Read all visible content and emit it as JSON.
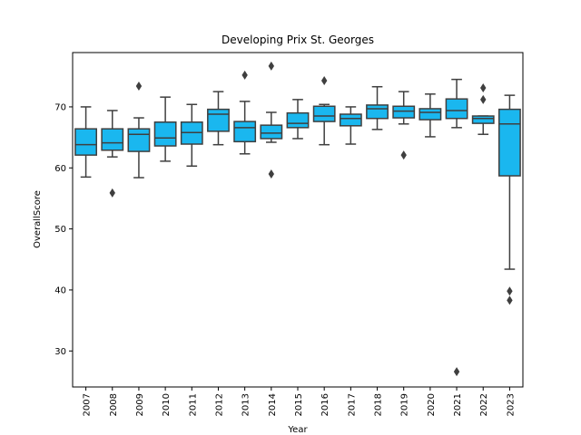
{
  "chart_data": {
    "type": "box",
    "title": "Developing Prix St. Georges",
    "x_label": "Year",
    "y_label": "OverallScore",
    "categories": [
      "2007",
      "2008",
      "2009",
      "2010",
      "2011",
      "2012",
      "2013",
      "2014",
      "2015",
      "2016",
      "2017",
      "2018",
      "2019",
      "2020",
      "2021",
      "2022",
      "2023"
    ],
    "color": "#1ab7ef",
    "boxes": [
      {
        "low": 58.5,
        "q1": 62.1,
        "median": 63.8,
        "q3": 66.4,
        "high": 70.0,
        "outliers": []
      },
      {
        "low": 61.8,
        "q1": 62.9,
        "median": 64.1,
        "q3": 66.4,
        "high": 69.4,
        "outliers": [
          55.9
        ]
      },
      {
        "low": 58.4,
        "q1": 62.7,
        "median": 65.5,
        "q3": 66.4,
        "high": 68.2,
        "outliers": [
          73.4
        ]
      },
      {
        "low": 61.1,
        "q1": 63.6,
        "median": 64.9,
        "q3": 67.5,
        "high": 71.6,
        "outliers": []
      },
      {
        "low": 60.3,
        "q1": 63.9,
        "median": 65.8,
        "q3": 67.5,
        "high": 70.4,
        "outliers": []
      },
      {
        "low": 63.8,
        "q1": 66.0,
        "median": 68.8,
        "q3": 69.6,
        "high": 72.5,
        "outliers": []
      },
      {
        "low": 62.3,
        "q1": 64.3,
        "median": 66.6,
        "q3": 67.6,
        "high": 70.9,
        "outliers": [
          75.2
        ]
      },
      {
        "low": 64.2,
        "q1": 64.8,
        "median": 65.7,
        "q3": 67.0,
        "high": 69.1,
        "outliers": [
          76.7,
          59.0
        ]
      },
      {
        "low": 64.8,
        "q1": 66.6,
        "median": 67.3,
        "q3": 69.0,
        "high": 71.2,
        "outliers": []
      },
      {
        "low": 63.8,
        "q1": 67.6,
        "median": 68.5,
        "q3": 70.1,
        "high": 70.4,
        "outliers": [
          74.3
        ]
      },
      {
        "low": 63.9,
        "q1": 66.9,
        "median": 68.1,
        "q3": 68.8,
        "high": 70.0,
        "outliers": []
      },
      {
        "low": 66.3,
        "q1": 68.1,
        "median": 69.7,
        "q3": 70.3,
        "high": 73.3,
        "outliers": []
      },
      {
        "low": 67.2,
        "q1": 68.2,
        "median": 69.3,
        "q3": 70.1,
        "high": 72.5,
        "outliers": [
          62.1
        ]
      },
      {
        "low": 65.1,
        "q1": 67.9,
        "median": 69.1,
        "q3": 69.7,
        "high": 72.1,
        "outliers": []
      },
      {
        "low": 66.6,
        "q1": 68.1,
        "median": 69.4,
        "q3": 71.3,
        "high": 74.5,
        "outliers": [
          26.6
        ]
      },
      {
        "low": 65.5,
        "q1": 67.3,
        "median": 68.1,
        "q3": 68.5,
        "high": 68.5,
        "outliers": [
          73.1,
          71.2
        ]
      },
      {
        "low": 43.4,
        "q1": 58.7,
        "median": 67.2,
        "q3": 69.6,
        "high": 71.9,
        "outliers": [
          39.8,
          38.3
        ]
      }
    ],
    "ylim": [
      24.1,
      78.9
    ],
    "yticks": [
      30,
      40,
      50,
      60,
      70
    ]
  }
}
